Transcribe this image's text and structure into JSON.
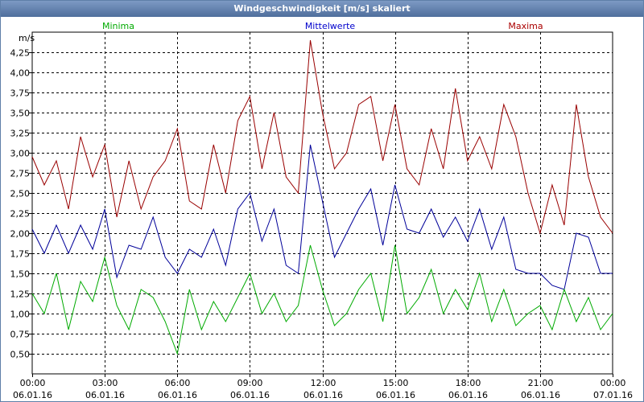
{
  "window": {
    "title": "Windgeschwindigkeit [m/s] skaliert"
  },
  "chart_data": {
    "type": "line",
    "title": "Windgeschwindigkeit [m/s] skaliert",
    "ylabel": "m/s",
    "ylim": [
      0.25,
      4.5
    ],
    "xlim": [
      0,
      24
    ],
    "y_ticks": [
      "0,50",
      "0,75",
      "1,00",
      "1,25",
      "1,50",
      "1,75",
      "2,00",
      "2,25",
      "2,50",
      "2,75",
      "3,00",
      "3,25",
      "3,50",
      "3,75",
      "4,00",
      "4,25"
    ],
    "y_tick_values": [
      0.5,
      0.75,
      1.0,
      1.25,
      1.5,
      1.75,
      2.0,
      2.25,
      2.5,
      2.75,
      3.0,
      3.25,
      3.5,
      3.75,
      4.0,
      4.25
    ],
    "x_ticks": [
      {
        "time": "00:00",
        "date": "06.01.16",
        "hour": 0
      },
      {
        "time": "03:00",
        "date": "06.01.16",
        "hour": 3
      },
      {
        "time": "06:00",
        "date": "06.01.16",
        "hour": 6
      },
      {
        "time": "09:00",
        "date": "06.01.16",
        "hour": 9
      },
      {
        "time": "12:00",
        "date": "06.01.16",
        "hour": 12
      },
      {
        "time": "15:00",
        "date": "06.01.16",
        "hour": 15
      },
      {
        "time": "18:00",
        "date": "06.01.16",
        "hour": 18
      },
      {
        "time": "21:00",
        "date": "06.01.16",
        "hour": 21
      },
      {
        "time": "00:00",
        "date": "07.01.16",
        "hour": 24
      }
    ],
    "grid": true,
    "series": [
      {
        "name": "Maxima",
        "color": "#990000",
        "x": [
          0,
          0.5,
          1,
          1.5,
          2,
          2.5,
          3,
          3.5,
          4,
          4.5,
          5,
          5.5,
          6,
          6.5,
          7,
          7.5,
          8,
          8.5,
          9,
          9.5,
          10,
          10.5,
          11,
          11.5,
          12,
          12.5,
          13,
          13.5,
          14,
          14.5,
          15,
          15.5,
          16,
          16.5,
          17,
          17.5,
          18,
          18.5,
          19,
          19.5,
          20,
          20.5,
          21,
          21.5,
          22,
          22.5,
          23,
          23.5,
          24
        ],
        "values": [
          2.95,
          2.6,
          2.9,
          2.3,
          3.2,
          2.7,
          3.1,
          2.2,
          2.9,
          2.3,
          2.7,
          2.9,
          3.3,
          2.4,
          2.3,
          3.1,
          2.5,
          3.4,
          3.7,
          2.8,
          3.5,
          2.7,
          2.5,
          4.4,
          3.5,
          2.8,
          3.0,
          3.6,
          3.7,
          2.9,
          3.6,
          2.8,
          2.6,
          3.3,
          2.8,
          3.8,
          2.9,
          3.2,
          2.8,
          3.6,
          3.2,
          2.5,
          2.0,
          2.6,
          2.1,
          3.6,
          2.7,
          2.2,
          2.0
        ]
      },
      {
        "name": "Mittelwerte",
        "color": "#000099",
        "x": [
          0,
          0.5,
          1,
          1.5,
          2,
          2.5,
          3,
          3.5,
          4,
          4.5,
          5,
          5.5,
          6,
          6.5,
          7,
          7.5,
          8,
          8.5,
          9,
          9.5,
          10,
          10.5,
          11,
          11.5,
          12,
          12.5,
          13,
          13.5,
          14,
          14.5,
          15,
          15.5,
          16,
          16.5,
          17,
          17.5,
          18,
          18.5,
          19,
          19.5,
          20,
          20.5,
          21,
          21.5,
          22,
          22.5,
          23,
          23.5,
          24
        ],
        "values": [
          2.05,
          1.75,
          2.1,
          1.75,
          2.1,
          1.8,
          2.3,
          1.45,
          1.85,
          1.8,
          2.2,
          1.7,
          1.5,
          1.8,
          1.7,
          2.05,
          1.6,
          2.3,
          2.5,
          1.9,
          2.3,
          1.6,
          1.5,
          3.1,
          2.4,
          1.7,
          2.0,
          2.3,
          2.55,
          1.85,
          2.6,
          2.05,
          2.0,
          2.3,
          1.95,
          2.2,
          1.9,
          2.3,
          1.8,
          2.2,
          1.55,
          1.5,
          1.5,
          1.35,
          1.3,
          2.0,
          1.95,
          1.5,
          1.5
        ]
      },
      {
        "name": "Minima",
        "color": "#00aa00",
        "x": [
          0,
          0.5,
          1,
          1.5,
          2,
          2.5,
          3,
          3.5,
          4,
          4.5,
          5,
          5.5,
          6,
          6.5,
          7,
          7.5,
          8,
          8.5,
          9,
          9.5,
          10,
          10.5,
          11,
          11.5,
          12,
          12.5,
          13,
          13.5,
          14,
          14.5,
          15,
          15.5,
          16,
          16.5,
          17,
          17.5,
          18,
          18.5,
          19,
          19.5,
          20,
          20.5,
          21,
          21.5,
          22,
          22.5,
          23,
          23.5,
          24
        ],
        "values": [
          1.25,
          1.0,
          1.5,
          0.8,
          1.4,
          1.15,
          1.7,
          1.1,
          0.8,
          1.3,
          1.2,
          0.9,
          0.5,
          1.3,
          0.8,
          1.15,
          0.9,
          1.2,
          1.5,
          1.0,
          1.25,
          0.9,
          1.1,
          1.85,
          1.3,
          0.85,
          1.0,
          1.3,
          1.5,
          0.9,
          1.85,
          1.0,
          1.2,
          1.55,
          1.0,
          1.3,
          1.05,
          1.5,
          0.9,
          1.3,
          0.85,
          1.0,
          1.1,
          0.8,
          1.3,
          0.9,
          1.2,
          0.8,
          1.0
        ]
      }
    ],
    "legend": [
      {
        "name": "Minima",
        "color": "#00aa00",
        "position": "top-left"
      },
      {
        "name": "Mittelwerte",
        "color": "#0000cc",
        "position": "top-center"
      },
      {
        "name": "Maxima",
        "color": "#aa0000",
        "position": "top-right"
      }
    ]
  }
}
